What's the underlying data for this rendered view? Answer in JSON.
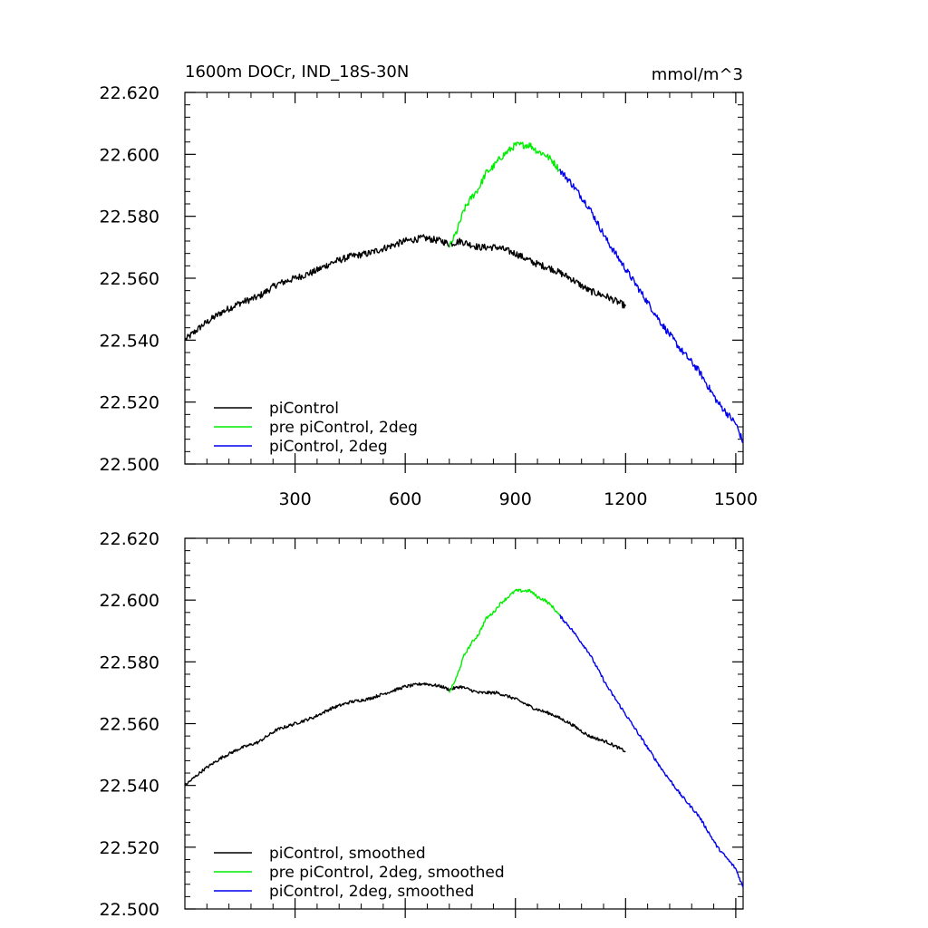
{
  "figure": {
    "title_left": "1600m DOCr, IND_18S-30N",
    "title_right": "mmol/m^3"
  },
  "chart_data": [
    {
      "type": "line",
      "panel": "top",
      "title": "1600m DOCr, IND_18S-30N",
      "units": "mmol/m^3",
      "xlim": [
        0,
        1520
      ],
      "ylim": [
        22.5,
        22.62
      ],
      "x_ticks": [
        300,
        600,
        900,
        1200,
        1500
      ],
      "x_tick_labels": [
        "300",
        "600",
        "900",
        "1200",
        "1500"
      ],
      "y_ticks": [
        22.5,
        22.52,
        22.54,
        22.56,
        22.58,
        22.6,
        22.62
      ],
      "y_tick_labels": [
        "22.500",
        "22.520",
        "22.540",
        "22.560",
        "22.580",
        "22.600",
        "22.620"
      ],
      "legend_position": "bottom-left",
      "noise": 0.0011,
      "series": [
        {
          "name": "piControl",
          "color": "#000000",
          "x": [
            0,
            50,
            100,
            150,
            200,
            250,
            300,
            350,
            400,
            450,
            500,
            550,
            600,
            650,
            700,
            720,
            750,
            800,
            850,
            900,
            950,
            1000,
            1050,
            1100,
            1150,
            1200
          ],
          "y": [
            22.54,
            22.545,
            22.549,
            22.552,
            22.554,
            22.558,
            22.56,
            22.562,
            22.565,
            22.567,
            22.568,
            22.57,
            22.572,
            22.573,
            22.572,
            22.571,
            22.572,
            22.57,
            22.57,
            22.568,
            22.565,
            22.563,
            22.56,
            22.556,
            22.554,
            22.551
          ]
        },
        {
          "name": "pre piControl, 2deg",
          "color": "#00ee00",
          "x": [
            720,
            740,
            760,
            780,
            800,
            820,
            840,
            860,
            880,
            900,
            920,
            940,
            960,
            980,
            1000,
            1020
          ],
          "y": [
            22.57,
            22.575,
            22.582,
            22.586,
            22.589,
            22.594,
            22.596,
            22.599,
            22.601,
            22.603,
            22.603,
            22.603,
            22.601,
            22.6,
            22.598,
            22.595
          ]
        },
        {
          "name": "piControl, 2deg",
          "color": "#0000ee",
          "x": [
            1020,
            1050,
            1100,
            1150,
            1200,
            1250,
            1300,
            1350,
            1400,
            1450,
            1500,
            1520
          ],
          "y": [
            22.595,
            22.591,
            22.583,
            22.572,
            22.563,
            22.554,
            22.545,
            22.537,
            22.53,
            22.52,
            22.513,
            22.507
          ]
        }
      ]
    },
    {
      "type": "line",
      "panel": "bottom",
      "xlim": [
        0,
        1520
      ],
      "ylim": [
        22.5,
        22.62
      ],
      "x_ticks": [
        300,
        600,
        900,
        1200,
        1500
      ],
      "y_ticks": [
        22.5,
        22.52,
        22.54,
        22.56,
        22.58,
        22.6,
        22.62
      ],
      "y_tick_labels": [
        "22.500",
        "22.520",
        "22.540",
        "22.560",
        "22.580",
        "22.600",
        "22.620"
      ],
      "legend_position": "bottom-left",
      "noise": 0.0005,
      "series": [
        {
          "name": "piControl, smoothed",
          "color": "#000000",
          "x": [
            0,
            50,
            100,
            150,
            200,
            250,
            300,
            350,
            400,
            450,
            500,
            550,
            600,
            650,
            700,
            720,
            750,
            800,
            850,
            900,
            950,
            1000,
            1050,
            1100,
            1150,
            1200
          ],
          "y": [
            22.54,
            22.545,
            22.549,
            22.552,
            22.554,
            22.558,
            22.56,
            22.562,
            22.565,
            22.567,
            22.568,
            22.57,
            22.572,
            22.573,
            22.572,
            22.571,
            22.572,
            22.57,
            22.57,
            22.568,
            22.565,
            22.563,
            22.56,
            22.556,
            22.554,
            22.551
          ]
        },
        {
          "name": "pre piControl, 2deg, smoothed",
          "color": "#00ee00",
          "x": [
            720,
            740,
            760,
            780,
            800,
            820,
            840,
            860,
            880,
            900,
            920,
            940,
            960,
            980,
            1000,
            1020
          ],
          "y": [
            22.57,
            22.575,
            22.582,
            22.586,
            22.589,
            22.594,
            22.596,
            22.599,
            22.601,
            22.603,
            22.603,
            22.603,
            22.601,
            22.6,
            22.598,
            22.595
          ]
        },
        {
          "name": "piControl, 2deg, smoothed",
          "color": "#0000ee",
          "x": [
            1020,
            1050,
            1100,
            1150,
            1200,
            1250,
            1300,
            1350,
            1400,
            1450,
            1500,
            1520
          ],
          "y": [
            22.595,
            22.591,
            22.583,
            22.572,
            22.563,
            22.554,
            22.545,
            22.537,
            22.53,
            22.52,
            22.513,
            22.507
          ]
        }
      ]
    }
  ]
}
